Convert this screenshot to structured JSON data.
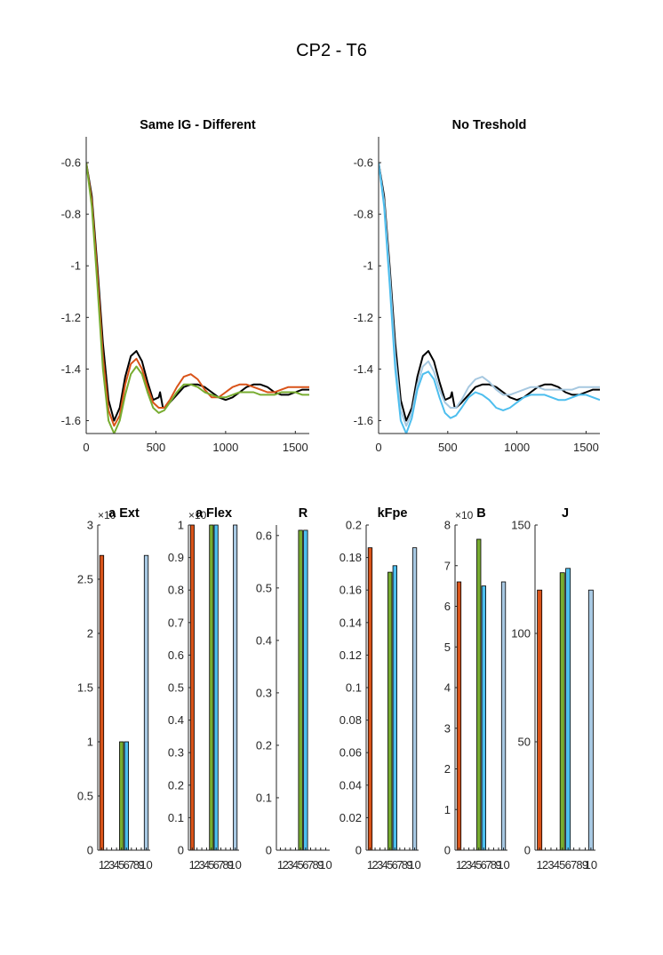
{
  "figure": {
    "title": "CP2 - T6"
  },
  "colors": {
    "black": "#000000",
    "orange": "#D95319",
    "green": "#77AC30",
    "lightblue": "#A6C8E0",
    "blue": "#4DBEEE",
    "skyblue": "#A8C9E3",
    "axis": "#262626"
  },
  "chart_data": [
    {
      "type": "line",
      "title": "Same IG - Different",
      "xlim": [
        0,
        1600
      ],
      "ylim": [
        -1.65,
        -0.5
      ],
      "xticks": [
        0,
        500,
        1000,
        1500
      ],
      "yticks": [
        -0.6,
        -0.8,
        -1,
        -1.2,
        -1.4,
        -1.6
      ],
      "series": [
        {
          "color": "#000000",
          "x": [
            0,
            40,
            80,
            120,
            160,
            200,
            240,
            280,
            320,
            360,
            400,
            440,
            480,
            520,
            530,
            540,
            550,
            560,
            600,
            650,
            700,
            750,
            800,
            850,
            900,
            950,
            1000,
            1050,
            1100,
            1150,
            1200,
            1250,
            1300,
            1350,
            1400,
            1450,
            1500,
            1550,
            1600
          ],
          "y": [
            -0.6,
            -0.73,
            -1.0,
            -1.3,
            -1.52,
            -1.6,
            -1.55,
            -1.43,
            -1.35,
            -1.33,
            -1.37,
            -1.45,
            -1.52,
            -1.51,
            -1.49,
            -1.52,
            -1.55,
            -1.55,
            -1.53,
            -1.5,
            -1.47,
            -1.46,
            -1.46,
            -1.47,
            -1.49,
            -1.51,
            -1.52,
            -1.51,
            -1.49,
            -1.47,
            -1.46,
            -1.46,
            -1.47,
            -1.49,
            -1.5,
            -1.5,
            -1.49,
            -1.48,
            -1.48
          ]
        },
        {
          "color": "#D95319",
          "x": [
            0,
            40,
            80,
            120,
            160,
            200,
            240,
            280,
            320,
            360,
            400,
            440,
            480,
            520,
            560,
            600,
            650,
            700,
            750,
            800,
            850,
            900,
            950,
            1000,
            1050,
            1100,
            1150,
            1200,
            1250,
            1300,
            1350,
            1400,
            1450,
            1500,
            1550,
            1600
          ],
          "y": [
            -0.6,
            -0.75,
            -1.03,
            -1.35,
            -1.56,
            -1.62,
            -1.58,
            -1.46,
            -1.38,
            -1.36,
            -1.4,
            -1.47,
            -1.53,
            -1.55,
            -1.55,
            -1.52,
            -1.47,
            -1.43,
            -1.42,
            -1.44,
            -1.48,
            -1.51,
            -1.51,
            -1.49,
            -1.47,
            -1.46,
            -1.46,
            -1.47,
            -1.48,
            -1.49,
            -1.49,
            -1.48,
            -1.47,
            -1.47,
            -1.47,
            -1.47
          ]
        },
        {
          "color": "#77AC30",
          "x": [
            0,
            40,
            80,
            120,
            160,
            200,
            240,
            280,
            320,
            360,
            400,
            440,
            480,
            520,
            560,
            600,
            650,
            700,
            750,
            800,
            850,
            900,
            950,
            1000,
            1050,
            1100,
            1150,
            1200,
            1250,
            1300,
            1350,
            1400,
            1450,
            1500,
            1550,
            1600
          ],
          "y": [
            -0.6,
            -0.77,
            -1.07,
            -1.4,
            -1.6,
            -1.65,
            -1.6,
            -1.5,
            -1.42,
            -1.39,
            -1.42,
            -1.49,
            -1.55,
            -1.57,
            -1.56,
            -1.53,
            -1.49,
            -1.46,
            -1.46,
            -1.47,
            -1.49,
            -1.5,
            -1.51,
            -1.51,
            -1.5,
            -1.49,
            -1.49,
            -1.49,
            -1.5,
            -1.5,
            -1.5,
            -1.49,
            -1.49,
            -1.49,
            -1.5,
            -1.5
          ]
        }
      ]
    },
    {
      "type": "line",
      "title": "No Treshold",
      "xlim": [
        0,
        1600
      ],
      "ylim": [
        -1.65,
        -0.5
      ],
      "xticks": [
        0,
        500,
        1000,
        1500
      ],
      "yticks": [
        -0.6,
        -0.8,
        -1,
        -1.2,
        -1.4,
        -1.6
      ],
      "series": [
        {
          "color": "#000000",
          "x": [
            0,
            40,
            80,
            120,
            160,
            200,
            240,
            280,
            320,
            360,
            400,
            440,
            480,
            520,
            530,
            540,
            550,
            560,
            600,
            650,
            700,
            750,
            800,
            850,
            900,
            950,
            1000,
            1050,
            1100,
            1150,
            1200,
            1250,
            1300,
            1350,
            1400,
            1450,
            1500,
            1550,
            1600
          ],
          "y": [
            -0.6,
            -0.73,
            -1.0,
            -1.3,
            -1.52,
            -1.6,
            -1.55,
            -1.43,
            -1.35,
            -1.33,
            -1.37,
            -1.45,
            -1.52,
            -1.51,
            -1.49,
            -1.52,
            -1.55,
            -1.55,
            -1.53,
            -1.5,
            -1.47,
            -1.46,
            -1.46,
            -1.47,
            -1.49,
            -1.51,
            -1.52,
            -1.51,
            -1.49,
            -1.47,
            -1.46,
            -1.46,
            -1.47,
            -1.49,
            -1.5,
            -1.5,
            -1.49,
            -1.48,
            -1.48
          ]
        },
        {
          "color": "#A6C8E0",
          "x": [
            0,
            40,
            80,
            120,
            160,
            200,
            240,
            280,
            320,
            360,
            400,
            440,
            480,
            520,
            560,
            600,
            650,
            700,
            750,
            800,
            850,
            900,
            950,
            1000,
            1050,
            1100,
            1150,
            1200,
            1250,
            1300,
            1350,
            1400,
            1450,
            1500,
            1550,
            1600
          ],
          "y": [
            -0.6,
            -0.75,
            -1.03,
            -1.35,
            -1.56,
            -1.62,
            -1.57,
            -1.46,
            -1.39,
            -1.37,
            -1.41,
            -1.48,
            -1.53,
            -1.55,
            -1.55,
            -1.52,
            -1.47,
            -1.44,
            -1.43,
            -1.45,
            -1.48,
            -1.5,
            -1.5,
            -1.49,
            -1.48,
            -1.47,
            -1.47,
            -1.48,
            -1.48,
            -1.48,
            -1.48,
            -1.48,
            -1.47,
            -1.47,
            -1.47,
            -1.47
          ]
        },
        {
          "color": "#4DBEEE",
          "x": [
            0,
            40,
            80,
            120,
            160,
            200,
            240,
            280,
            320,
            360,
            400,
            440,
            480,
            520,
            560,
            600,
            650,
            700,
            750,
            800,
            850,
            900,
            950,
            1000,
            1050,
            1100,
            1150,
            1200,
            1250,
            1300,
            1350,
            1400,
            1450,
            1500,
            1550,
            1600
          ],
          "y": [
            -0.6,
            -0.77,
            -1.07,
            -1.4,
            -1.6,
            -1.65,
            -1.59,
            -1.48,
            -1.42,
            -1.41,
            -1.44,
            -1.51,
            -1.57,
            -1.59,
            -1.58,
            -1.55,
            -1.51,
            -1.49,
            -1.5,
            -1.52,
            -1.55,
            -1.56,
            -1.55,
            -1.53,
            -1.51,
            -1.5,
            -1.5,
            -1.5,
            -1.51,
            -1.52,
            -1.52,
            -1.51,
            -1.5,
            -1.5,
            -1.51,
            -1.52
          ]
        }
      ]
    },
    {
      "type": "bar",
      "title": "a Ext",
      "exponent_label": "×10",
      "ylim": [
        0,
        3
      ],
      "yticks": [
        0,
        0.5,
        1,
        1.5,
        2,
        2.5,
        3
      ],
      "categories": [
        "1",
        "2",
        "3",
        "4",
        "5",
        "6",
        "7",
        "8",
        "9",
        "10"
      ],
      "values": [
        2.72,
        0,
        0,
        0,
        1.0,
        1.0,
        0,
        0,
        0,
        2.72
      ],
      "bar_colors": [
        "#D95319",
        "",
        "",
        "",
        "#77AC30",
        "#4DBEEE",
        "",
        "",
        "",
        "#A8C9E3"
      ]
    },
    {
      "type": "bar",
      "title": "a Flex",
      "exponent_label": "×10",
      "ylim": [
        0,
        1
      ],
      "yticks": [
        0,
        0.1,
        0.2,
        0.3,
        0.4,
        0.5,
        0.6,
        0.7,
        0.8,
        0.9,
        1
      ],
      "categories": [
        "1",
        "2",
        "3",
        "4",
        "5",
        "6",
        "7",
        "8",
        "9",
        "10"
      ],
      "values": [
        1.0,
        0,
        0,
        0,
        1.0,
        1.0,
        0,
        0,
        0,
        1.0
      ],
      "bar_colors": [
        "#D95319",
        "",
        "",
        "",
        "#77AC30",
        "#4DBEEE",
        "",
        "",
        "",
        "#A8C9E3"
      ]
    },
    {
      "type": "bar",
      "title": "R",
      "ylim": [
        0,
        0.62
      ],
      "yticks": [
        0,
        0.1,
        0.2,
        0.3,
        0.4,
        0.5,
        0.6
      ],
      "categories": [
        "1",
        "2",
        "3",
        "4",
        "5",
        "6",
        "7",
        "8",
        "9",
        "10"
      ],
      "values": [
        0,
        0,
        0,
        0,
        0.61,
        0.61,
        0,
        0,
        0,
        0
      ],
      "bar_colors": [
        "",
        "",
        "",
        "",
        "#77AC30",
        "#4DBEEE",
        "",
        "",
        "",
        ""
      ]
    },
    {
      "type": "bar",
      "title": "kFpe",
      "ylim": [
        0,
        0.2
      ],
      "yticks": [
        0,
        0.02,
        0.04,
        0.06,
        0.08,
        0.1,
        0.12,
        0.14,
        0.16,
        0.18,
        0.2
      ],
      "categories": [
        "1",
        "2",
        "3",
        "4",
        "5",
        "6",
        "7",
        "8",
        "9",
        "10"
      ],
      "values": [
        0.186,
        0,
        0,
        0,
        0.171,
        0.175,
        0,
        0,
        0,
        0.186
      ],
      "bar_colors": [
        "#D95319",
        "",
        "",
        "",
        "#77AC30",
        "#4DBEEE",
        "",
        "",
        "",
        "#A8C9E3"
      ]
    },
    {
      "type": "bar",
      "title": "B",
      "exponent_label": "×10",
      "ylim": [
        0,
        8
      ],
      "yticks": [
        0,
        1,
        2,
        3,
        4,
        5,
        6,
        7,
        8
      ],
      "categories": [
        "1",
        "2",
        "3",
        "4",
        "5",
        "6",
        "7",
        "8",
        "9",
        "10"
      ],
      "values": [
        6.6,
        0,
        0,
        0,
        7.65,
        6.5,
        0,
        0,
        0,
        6.6
      ],
      "bar_colors": [
        "#D95319",
        "",
        "",
        "",
        "#77AC30",
        "#4DBEEE",
        "",
        "",
        "",
        "#A8C9E3"
      ]
    },
    {
      "type": "bar",
      "title": "J",
      "ylim": [
        0,
        150
      ],
      "yticks": [
        0,
        50,
        100,
        150
      ],
      "categories": [
        "1",
        "2",
        "3",
        "4",
        "5",
        "6",
        "7",
        "8",
        "9",
        "10"
      ],
      "values": [
        120,
        0,
        0,
        0,
        128,
        130,
        0,
        0,
        0,
        120
      ],
      "bar_colors": [
        "#D95319",
        "",
        "",
        "",
        "#77AC30",
        "#4DBEEE",
        "",
        "",
        "",
        "#A8C9E3"
      ]
    }
  ]
}
